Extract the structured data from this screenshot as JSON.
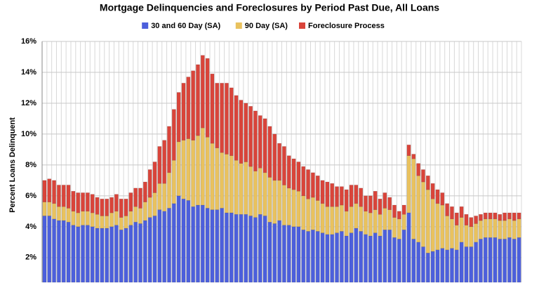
{
  "chart_data": {
    "type": "stacked_bar",
    "title": "Mortgage Delinquencies and Foreclosures by Period Past Due, All Loans",
    "y_label": "Percent Loans Delinquent",
    "ylim": [
      0.4,
      16
    ],
    "yticks": [
      {
        "value": 2,
        "label": "2%"
      },
      {
        "value": 4,
        "label": "4%"
      },
      {
        "value": 6,
        "label": "6%"
      },
      {
        "value": 8,
        "label": "8%"
      },
      {
        "value": 10,
        "label": "10%"
      },
      {
        "value": 12,
        "label": "12%"
      },
      {
        "value": 14,
        "label": "14%"
      },
      {
        "value": 16,
        "label": "16%"
      }
    ],
    "grid": true,
    "legend": "top",
    "series": [
      {
        "name": "30 and 60 Day (SA)",
        "color": "#4c5fdc",
        "values": [
          4.3,
          4.3,
          4.1,
          4.0,
          4.0,
          3.9,
          3.7,
          3.6,
          3.7,
          3.7,
          3.6,
          3.5,
          3.5,
          3.5,
          3.6,
          3.7,
          3.4,
          3.5,
          3.7,
          3.9,
          3.8,
          4.0,
          4.2,
          4.3,
          4.7,
          4.6,
          4.8,
          5.1,
          5.6,
          5.4,
          5.3,
          4.9,
          5.0,
          5.0,
          4.8,
          4.7,
          4.7,
          4.8,
          4.5,
          4.5,
          4.4,
          4.4,
          4.4,
          4.3,
          4.2,
          4.4,
          4.3,
          3.9,
          3.8,
          4.0,
          3.7,
          3.7,
          3.6,
          3.6,
          3.4,
          3.3,
          3.4,
          3.3,
          3.2,
          3.1,
          3.1,
          3.2,
          3.3,
          3.0,
          3.2,
          3.5,
          3.3,
          3.1,
          3.0,
          3.2,
          3.0,
          3.4,
          3.4,
          2.9,
          2.8,
          3.4,
          4.5,
          2.8,
          2.6,
          2.3,
          1.9,
          2.0,
          2.1,
          2.2,
          2.1,
          2.2,
          2.1,
          2.6,
          2.3,
          2.3,
          2.6,
          2.8,
          2.9,
          2.9,
          2.9,
          2.8,
          2.8,
          2.9,
          2.8,
          2.9
        ]
      },
      {
        "name": "90 Day (SA)",
        "color": "#e9c25e",
        "values": [
          0.9,
          0.9,
          1.0,
          0.9,
          0.9,
          0.9,
          0.9,
          0.9,
          0.9,
          0.9,
          0.9,
          0.9,
          0.8,
          0.8,
          0.9,
          0.9,
          0.8,
          0.8,
          0.9,
          1.0,
          1.0,
          1.2,
          1.3,
          1.5,
          1.7,
          1.8,
          2.3,
          2.8,
          3.5,
          3.8,
          4.0,
          4.3,
          4.5,
          5.0,
          4.6,
          4.3,
          4.0,
          3.6,
          3.8,
          3.7,
          3.5,
          3.3,
          3.4,
          3.2,
          3.0,
          3.0,
          2.8,
          2.9,
          2.8,
          2.6,
          2.6,
          2.4,
          2.4,
          2.3,
          2.2,
          2.1,
          2.1,
          2.0,
          1.9,
          1.8,
          1.8,
          1.7,
          1.7,
          1.6,
          1.7,
          1.6,
          1.6,
          1.5,
          1.5,
          1.5,
          1.4,
          1.4,
          1.3,
          1.3,
          1.3,
          1.0,
          3.7,
          5.2,
          4.3,
          4.2,
          4.1,
          3.4,
          3.0,
          2.8,
          2.2,
          1.9,
          1.6,
          1.6,
          1.4,
          1.3,
          1.2,
          1.2,
          1.2,
          1.2,
          1.2,
          1.2,
          1.2,
          1.2,
          1.2,
          1.2
        ]
      },
      {
        "name": "Foreclosure Process",
        "color": "#d9443a",
        "values": [
          1.4,
          1.5,
          1.5,
          1.4,
          1.4,
          1.5,
          1.3,
          1.3,
          1.2,
          1.2,
          1.2,
          1.1,
          1.1,
          1.1,
          1.0,
          1.1,
          1.2,
          1.1,
          1.2,
          1.2,
          1.3,
          1.3,
          1.8,
          2.0,
          2.4,
          2.8,
          3.0,
          3.3,
          3.2,
          3.7,
          4.0,
          4.5,
          4.6,
          4.7,
          5.1,
          4.5,
          4.2,
          4.5,
          4.6,
          4.4,
          4.2,
          4.1,
          3.8,
          3.9,
          3.9,
          3.4,
          3.5,
          3.3,
          3.0,
          2.4,
          2.5,
          2.1,
          2.0,
          1.9,
          1.9,
          1.9,
          1.6,
          1.6,
          1.5,
          1.6,
          1.5,
          1.3,
          1.2,
          1.4,
          1.4,
          1.2,
          1.2,
          1.0,
          1.1,
          1.2,
          1.0,
          1.0,
          0.8,
          0.8,
          0.5,
          0.6,
          0.7,
          0.3,
          0.8,
          0.8,
          0.9,
          1.0,
          0.9,
          0.8,
          0.8,
          0.8,
          0.8,
          0.7,
          0.7,
          0.6,
          0.5,
          0.4,
          0.4,
          0.4,
          0.4,
          0.4,
          0.5,
          0.4,
          0.5,
          0.4
        ]
      }
    ]
  }
}
